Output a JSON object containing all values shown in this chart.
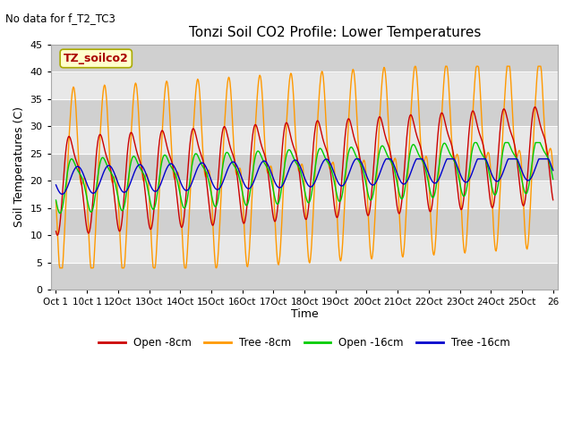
{
  "title": "Tonzi Soil CO2 Profile: Lower Temperatures",
  "subtitle": "No data for f_T2_TC3",
  "ylabel": "Soil Temperatures (C)",
  "xlabel": "Time",
  "legend_label": "TZ_soilco2",
  "ylim": [
    0,
    45
  ],
  "line_colors": {
    "open_8cm": "#cc0000",
    "tree_8cm": "#ff9900",
    "open_16cm": "#00cc00",
    "tree_16cm": "#0000cc"
  },
  "legend_items": [
    "Open -8cm",
    "Tree -8cm",
    "Open -16cm",
    "Tree -16cm"
  ],
  "background_inner": "#e8e8e8",
  "background_outer": "#ffffff",
  "band_colors": [
    "#d0d0d0",
    "#e8e8e8"
  ],
  "band_edges": [
    0,
    5,
    10,
    15,
    20,
    25,
    30,
    35,
    40,
    45
  ]
}
